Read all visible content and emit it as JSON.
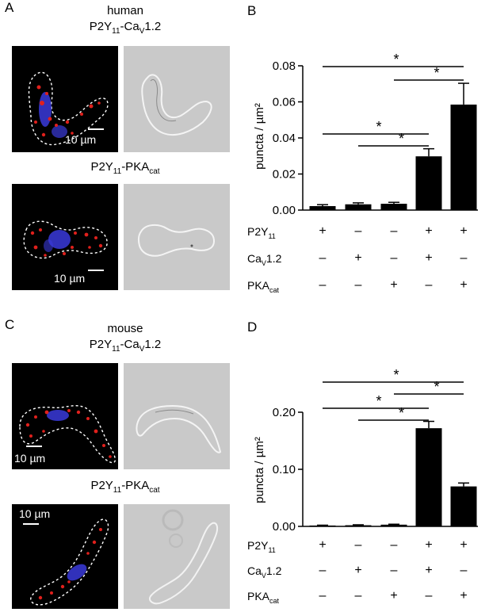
{
  "panels": {
    "A": {
      "letter": "A",
      "species": "human",
      "title_main": "P2Y",
      "title_sub": "11",
      "title_mid": "-Ca",
      "title_sub2": "V",
      "title_end": "1.2",
      "title2_main": "P2Y",
      "title2_sub": "11",
      "title2_mid": "-PKA",
      "title2_sub2": "cat",
      "scale1": "10 µm",
      "scale2": "10 µm"
    },
    "B": {
      "letter": "B"
    },
    "C": {
      "letter": "C",
      "species": "mouse",
      "title_main": "P2Y",
      "title_sub": "11",
      "title_mid": "-Ca",
      "title_sub2": "V",
      "title_end": "1.2",
      "title2_main": "P2Y",
      "title2_sub": "11",
      "title2_mid": "-PKA",
      "title2_sub2": "cat",
      "scale1": "10 µm",
      "scale2": "10 µm"
    },
    "D": {
      "letter": "D"
    }
  },
  "conditions": {
    "rows": [
      {
        "main": "P2Y",
        "sub": "11",
        "end": "",
        "signs": [
          "+",
          "–",
          "–",
          "+",
          "+"
        ]
      },
      {
        "main": "Ca",
        "sub": "V",
        "end": "1.2",
        "signs": [
          "–",
          "+",
          "–",
          "+",
          "–"
        ]
      },
      {
        "main": "PKA",
        "sub": "cat",
        "end": "",
        "signs": [
          "–",
          "–",
          "+",
          "–",
          "+"
        ]
      }
    ]
  },
  "significance_marker": "*",
  "chart_data": [
    {
      "type": "bar",
      "panel": "B",
      "ylabel": "puncta / µm²",
      "ylim": [
        0,
        0.08
      ],
      "yticks": [
        "0.00",
        "0.02",
        "0.04",
        "0.06",
        "0.08"
      ],
      "ytick_values": [
        0,
        0.02,
        0.04,
        0.06,
        0.08
      ],
      "values": [
        0.0022,
        0.0032,
        0.0035,
        0.0298,
        0.0585
      ],
      "errors": [
        0.0008,
        0.0008,
        0.0008,
        0.0042,
        0.0118
      ],
      "significance": [
        [
          0,
          4
        ],
        [
          2,
          4
        ],
        [
          0,
          3
        ],
        [
          1,
          3
        ]
      ]
    },
    {
      "type": "bar",
      "panel": "D",
      "ylabel": "puncta / µm²",
      "ylim": [
        0,
        0.2
      ],
      "yticks": [
        "0.00",
        "0.10",
        "0.20"
      ],
      "ytick_values": [
        0,
        0.1,
        0.2
      ],
      "values": [
        0.0015,
        0.002,
        0.003,
        0.172,
        0.07
      ],
      "errors": [
        0.0006,
        0.0008,
        0.0008,
        0.012,
        0.006
      ],
      "significance": [
        [
          0,
          4
        ],
        [
          2,
          4
        ],
        [
          0,
          3
        ],
        [
          1,
          3
        ]
      ]
    }
  ]
}
